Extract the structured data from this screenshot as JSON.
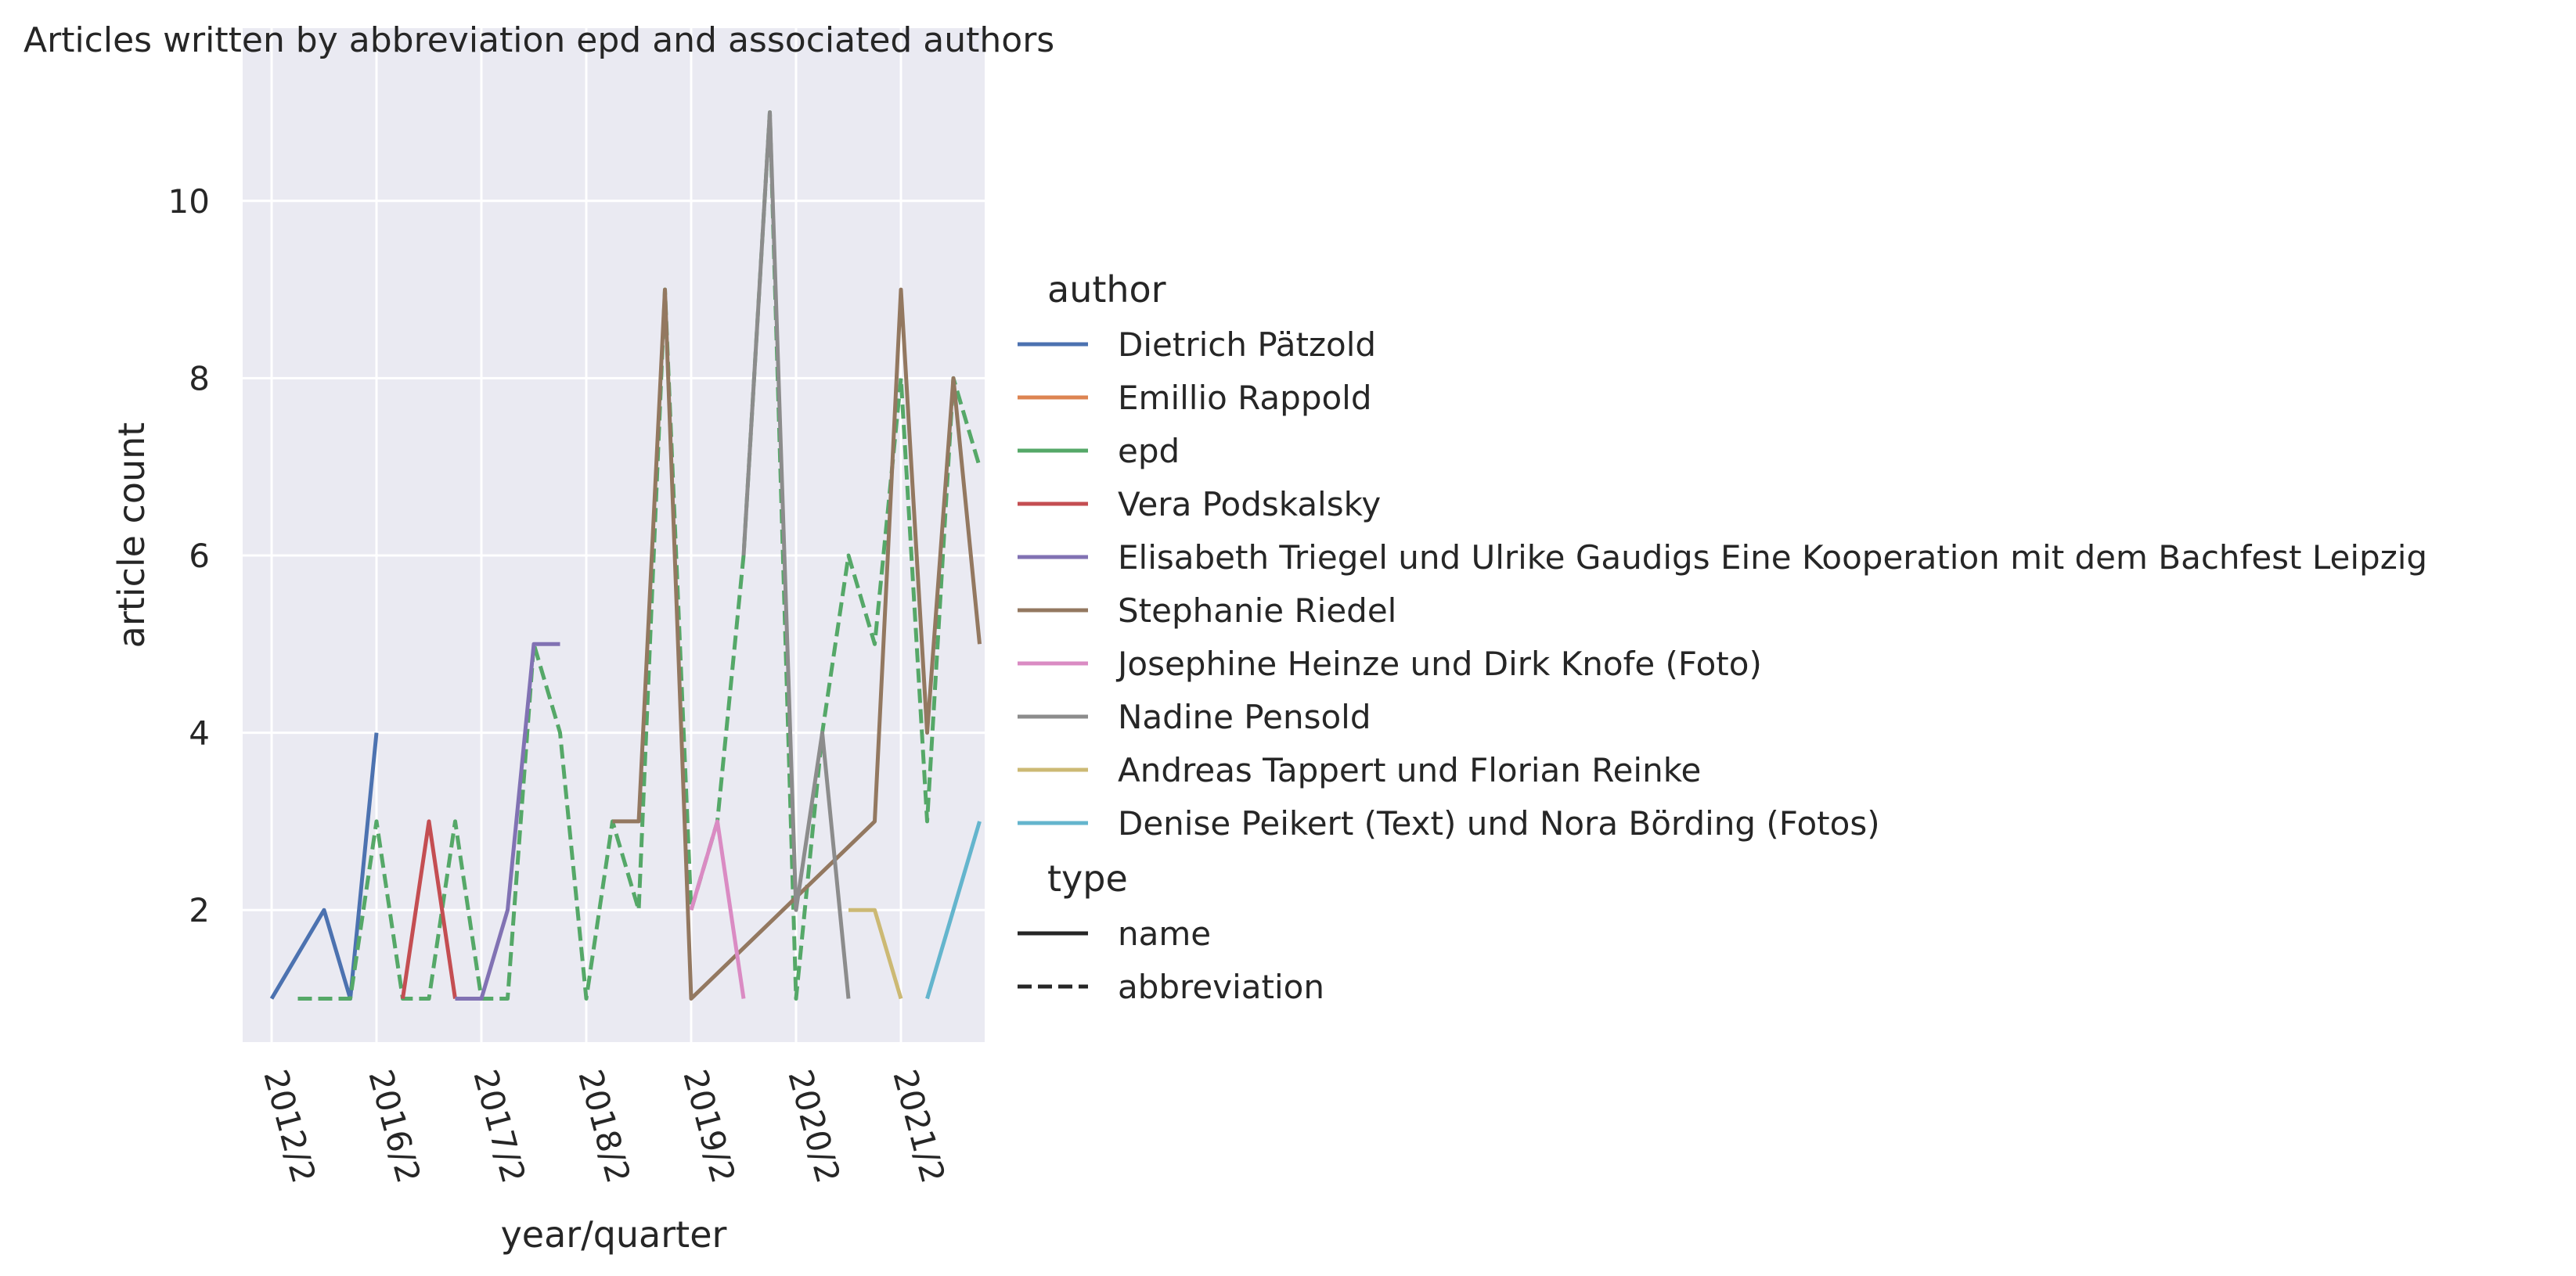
{
  "chart_data": {
    "type": "line",
    "title": "Articles written by abbreviation epd and associated authors",
    "xlabel": "year/quarter",
    "ylabel": "article count",
    "x_tick_labels": [
      "2012/2",
      "2016/2",
      "2017/2",
      "2018/2",
      "2019/2",
      "2020/2",
      "2021/2"
    ],
    "y_ticks": [
      2,
      4,
      6,
      8,
      10
    ],
    "ylim": [
      0.5,
      11.5
    ],
    "grid": true,
    "legend_position": "right",
    "legend": {
      "author_title": "author",
      "type_title": "type",
      "types": [
        {
          "name": "name",
          "dash": "solid"
        },
        {
          "name": "abbreviation",
          "dash": "dashed"
        }
      ]
    },
    "series": [
      {
        "name": "Dietrich Pätzold",
        "color": "#4c72b0",
        "dash": "solid",
        "points": [
          [
            0,
            1
          ],
          [
            2,
            2
          ],
          [
            3,
            1
          ],
          [
            4,
            4
          ]
        ]
      },
      {
        "name": "Emillio Rappold",
        "color": "#dd8452",
        "dash": "solid",
        "points": []
      },
      {
        "name": "epd",
        "color": "#55a868",
        "dash": "dashed",
        "points": [
          [
            1,
            1
          ],
          [
            3,
            1
          ],
          [
            4,
            3
          ],
          [
            5,
            1
          ],
          [
            6,
            1
          ],
          [
            7,
            3
          ],
          [
            8,
            1
          ],
          [
            9,
            1
          ],
          [
            10,
            5
          ],
          [
            11,
            4
          ],
          [
            12,
            1
          ],
          [
            13,
            3
          ],
          [
            14,
            2
          ],
          [
            15,
            9
          ],
          [
            16,
            2
          ],
          [
            17,
            3
          ],
          [
            18,
            6
          ],
          [
            19,
            11
          ],
          [
            20,
            1
          ],
          [
            21,
            4
          ],
          [
            22,
            6
          ],
          [
            23,
            5
          ],
          [
            24,
            8
          ],
          [
            25,
            3
          ],
          [
            26,
            8
          ],
          [
            27,
            7
          ]
        ]
      },
      {
        "name": "Vera Podskalsky",
        "color": "#c44e52",
        "dash": "solid",
        "points": [
          [
            5,
            1
          ],
          [
            6,
            3
          ],
          [
            7,
            1
          ]
        ]
      },
      {
        "name": "Elisabeth Triegel und Ulrike Gaudigs Eine Kooperation mit dem Bachfest Leipzig",
        "color": "#8172b3",
        "dash": "solid",
        "points": [
          [
            7,
            1
          ],
          [
            8,
            1
          ],
          [
            9,
            2
          ],
          [
            10,
            5
          ],
          [
            11,
            5
          ]
        ]
      },
      {
        "name": "Stephanie Riedel",
        "color": "#937860",
        "dash": "solid",
        "points": [
          [
            13,
            3
          ],
          [
            14,
            3
          ],
          [
            15,
            9
          ],
          [
            16,
            1
          ],
          [
            23,
            3
          ],
          [
            24,
            9
          ],
          [
            25,
            4
          ],
          [
            26,
            8
          ],
          [
            27,
            5
          ]
        ]
      },
      {
        "name": "Josephine Heinze und Dirk Knofe (Foto)",
        "color": "#da8bc3",
        "dash": "solid",
        "points": [
          [
            16,
            2
          ],
          [
            17,
            3
          ],
          [
            18,
            1
          ]
        ]
      },
      {
        "name": "Nadine Pensold",
        "color": "#8c8c8c",
        "dash": "solid",
        "points": [
          [
            18,
            6
          ],
          [
            19,
            11
          ],
          [
            20,
            2
          ],
          [
            21,
            4
          ],
          [
            22,
            1
          ]
        ]
      },
      {
        "name": "Andreas Tappert und Florian Reinke",
        "color": "#ccb974",
        "dash": "solid",
        "points": [
          [
            22,
            2
          ],
          [
            23,
            2
          ],
          [
            24,
            1
          ]
        ]
      },
      {
        "name": "Denise Peikert (Text) und Nora Börding (Fotos)",
        "color": "#64b5cd",
        "dash": "solid",
        "points": [
          [
            25,
            1
          ],
          [
            27,
            3
          ]
        ]
      }
    ]
  }
}
